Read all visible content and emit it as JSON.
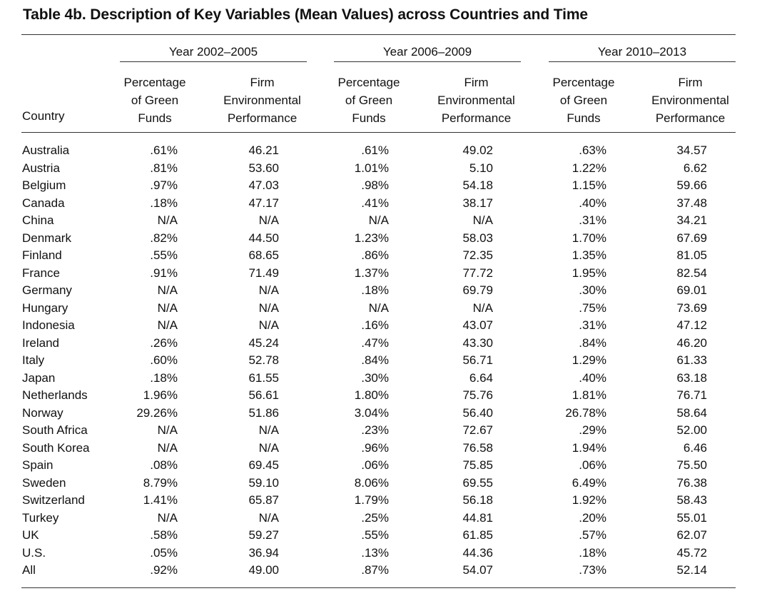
{
  "title": "Table 4b.  Description of Key Variables (Mean Values) across Countries and Time",
  "country_header": "Country",
  "groups": [
    "Year 2002–2005",
    "Year 2006–2009",
    "Year 2010–2013"
  ],
  "subheaders": {
    "pct": "Percentage\nof Green\nFunds",
    "firm": "Firm\nEnvironmental\nPerformance"
  },
  "rows": [
    [
      "Australia",
      ".61%",
      "46.21",
      ".61%",
      "49.02",
      ".63%",
      "34.57"
    ],
    [
      "Austria",
      ".81%",
      "53.60",
      "1.01%",
      "5.10",
      "1.22%",
      "6.62"
    ],
    [
      "Belgium",
      ".97%",
      "47.03",
      ".98%",
      "54.18",
      "1.15%",
      "59.66"
    ],
    [
      "Canada",
      ".18%",
      "47.17",
      ".41%",
      "38.17",
      ".40%",
      "37.48"
    ],
    [
      "China",
      "N/A",
      "N/A",
      "N/A",
      "N/A",
      ".31%",
      "34.21"
    ],
    [
      "Denmark",
      ".82%",
      "44.50",
      "1.23%",
      "58.03",
      "1.70%",
      "67.69"
    ],
    [
      "Finland",
      ".55%",
      "68.65",
      ".86%",
      "72.35",
      "1.35%",
      "81.05"
    ],
    [
      "France",
      ".91%",
      "71.49",
      "1.37%",
      "77.72",
      "1.95%",
      "82.54"
    ],
    [
      "Germany",
      "N/A",
      "N/A",
      ".18%",
      "69.79",
      ".30%",
      "69.01"
    ],
    [
      "Hungary",
      "N/A",
      "N/A",
      "N/A",
      "N/A",
      ".75%",
      "73.69"
    ],
    [
      "Indonesia",
      "N/A",
      "N/A",
      ".16%",
      "43.07",
      ".31%",
      "47.12"
    ],
    [
      "Ireland",
      ".26%",
      "45.24",
      ".47%",
      "43.30",
      ".84%",
      "46.20"
    ],
    [
      "Italy",
      ".60%",
      "52.78",
      ".84%",
      "56.71",
      "1.29%",
      "61.33"
    ],
    [
      "Japan",
      ".18%",
      "61.55",
      ".30%",
      "6.64",
      ".40%",
      "63.18"
    ],
    [
      "Netherlands",
      "1.96%",
      "56.61",
      "1.80%",
      "75.76",
      "1.81%",
      "76.71"
    ],
    [
      "Norway",
      "29.26%",
      "51.86",
      "3.04%",
      "56.40",
      "26.78%",
      "58.64"
    ],
    [
      "South Africa",
      "N/A",
      "N/A",
      ".23%",
      "72.67",
      ".29%",
      "52.00"
    ],
    [
      "South Korea",
      "N/A",
      "N/A",
      ".96%",
      "76.58",
      "1.94%",
      "6.46"
    ],
    [
      "Spain",
      ".08%",
      "69.45",
      ".06%",
      "75.85",
      ".06%",
      "75.50"
    ],
    [
      "Sweden",
      "8.79%",
      "59.10",
      "8.06%",
      "69.55",
      "6.49%",
      "76.38"
    ],
    [
      "Switzerland",
      "1.41%",
      "65.87",
      "1.79%",
      "56.18",
      "1.92%",
      "58.43"
    ],
    [
      "Turkey",
      "N/A",
      "N/A",
      ".25%",
      "44.81",
      ".20%",
      "55.01"
    ],
    [
      "UK",
      ".58%",
      "59.27",
      ".55%",
      "61.85",
      ".57%",
      "62.07"
    ],
    [
      "U.S.",
      ".05%",
      "36.94",
      ".13%",
      "44.36",
      ".18%",
      "45.72"
    ],
    [
      "All",
      ".92%",
      "49.00",
      ".87%",
      "54.07",
      ".73%",
      "52.14"
    ]
  ]
}
